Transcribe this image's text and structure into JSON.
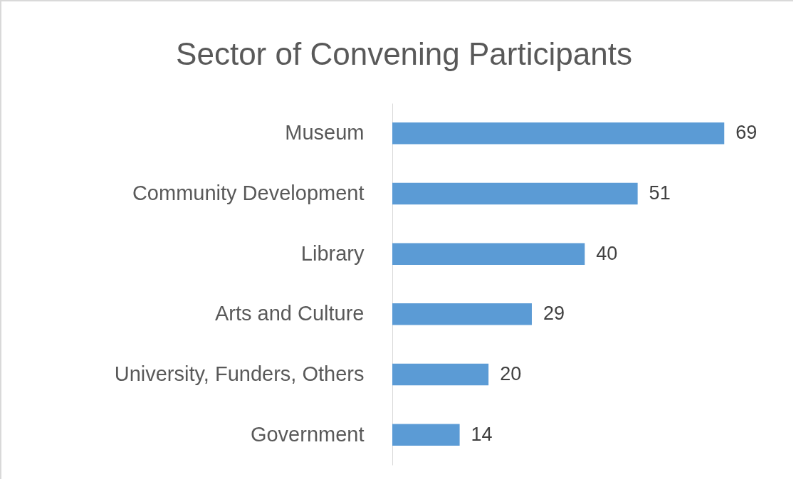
{
  "chart_data": {
    "type": "bar",
    "orientation": "horizontal",
    "title": "Sector of Convening Participants",
    "categories": [
      "Museum",
      "Community Development",
      "Library",
      "Arts and Culture",
      "University, Funders, Others",
      "Government"
    ],
    "values": [
      69,
      51,
      40,
      29,
      20,
      14
    ],
    "color": "#5b9bd5",
    "data_labels": true,
    "tick_labels": "y"
  }
}
